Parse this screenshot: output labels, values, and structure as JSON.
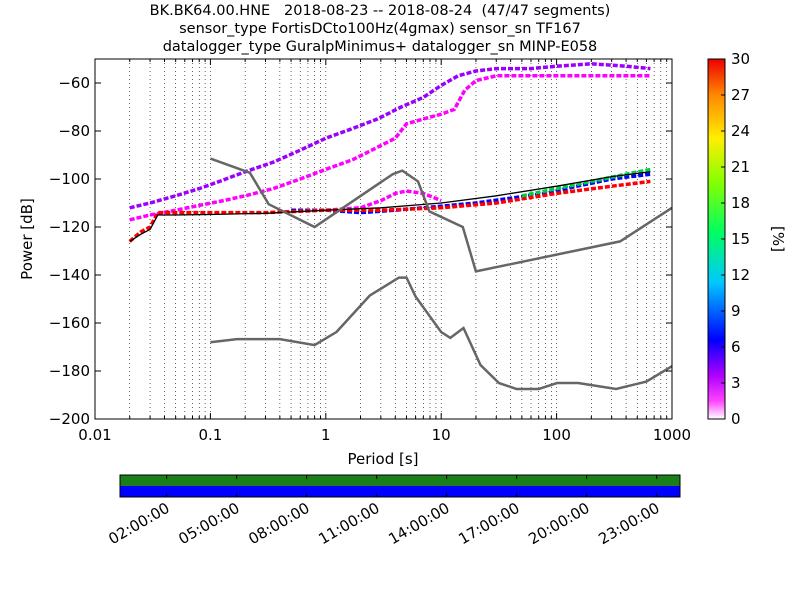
{
  "title_lines": [
    "BK.BK64.00.HNE   2018-08-23 -- 2018-08-24  (47/47 segments)",
    "sensor_type FortisDCto100Hz(4gmax) sensor_sn TF167",
    "datalogger_type GuralpMinimus+ datalogger_sn MINP-E058"
  ],
  "chart_data": {
    "type": "heatmap",
    "xlabel": "Period [s]",
    "ylabel": "Power [dB]",
    "x_scale": "log",
    "xlim": [
      0.01,
      1000
    ],
    "ylim": [
      -200,
      -50
    ],
    "x_ticks": [
      {
        "value": 0.01,
        "label": "0.01"
      },
      {
        "value": 0.1,
        "label": "0.1"
      },
      {
        "value": 1,
        "label": "1"
      },
      {
        "value": 10,
        "label": "10"
      },
      {
        "value": 100,
        "label": "100"
      },
      {
        "value": 1000,
        "label": "1000"
      }
    ],
    "y_ticks": [
      {
        "value": -60,
        "label": "−60"
      },
      {
        "value": -80,
        "label": "−80"
      },
      {
        "value": -100,
        "label": "−100"
      },
      {
        "value": -120,
        "label": "−120"
      },
      {
        "value": -140,
        "label": "−140"
      },
      {
        "value": -160,
        "label": "−160"
      },
      {
        "value": -180,
        "label": "−180"
      },
      {
        "value": -200,
        "label": "−200"
      }
    ],
    "grid": "dotted-vertical",
    "colorbar": {
      "label": "[%]",
      "range": [
        0,
        30
      ],
      "ticks": [
        "0",
        "3",
        "6",
        "9",
        "12",
        "15",
        "18",
        "21",
        "24",
        "27",
        "30"
      ],
      "colormap": "pqlx"
    },
    "nhnm": {
      "x": [
        0.1,
        0.22,
        0.32,
        0.8,
        3.8,
        4.6,
        6.3,
        7.9,
        15.4,
        20,
        354.8,
        1000
      ],
      "y": [
        -91.5,
        -97.4,
        -110.5,
        -120,
        -98,
        -96.5,
        -101,
        -113.5,
        -120,
        -138.5,
        -126,
        -112
      ]
    },
    "nlnm": {
      "x": [
        0.1,
        0.17,
        0.4,
        0.8,
        1.24,
        2.4,
        4.3,
        5,
        6,
        10,
        12,
        15.6,
        21.9,
        31.6,
        45,
        70,
        101,
        154,
        328,
        600,
        1000
      ],
      "y": [
        -168,
        -166.7,
        -166.7,
        -169.2,
        -163.7,
        -148.6,
        -141.1,
        -141.1,
        -149,
        -163.8,
        -166.2,
        -162.1,
        -177.5,
        -185,
        -187.5,
        -187.5,
        -185,
        -185,
        -187.5,
        -184.4,
        -178
      ]
    },
    "series": [
      {
        "name": "",
        "color": "#9b00ff",
        "x": [
          0.02,
          0.03,
          0.05,
          0.08,
          0.12,
          0.2,
          0.35,
          0.6,
          1,
          1.7,
          2.8,
          4.5,
          7,
          10,
          14,
          20,
          30,
          60,
          100,
          200,
          400,
          650
        ],
        "y": [
          -112,
          -110,
          -107,
          -104,
          -101,
          -97,
          -93,
          -88,
          -83,
          -79,
          -75,
          -70,
          -66,
          -61,
          -57,
          -55,
          -54,
          -54,
          -53,
          -52,
          -53,
          -54
        ]
      },
      {
        "name": "",
        "color": "#ff00ff",
        "x": [
          0.02,
          0.03,
          0.05,
          0.08,
          0.13,
          0.2,
          0.35,
          0.6,
          1,
          1.7,
          2.5,
          4,
          5,
          7,
          10,
          13,
          16,
          20,
          30,
          60,
          100,
          200,
          400,
          650
        ],
        "y": [
          -117,
          -115,
          -113,
          -111,
          -109,
          -107,
          -104,
          -100,
          -96,
          -92,
          -88,
          -83,
          -77,
          -75,
          -73,
          -71,
          -63,
          -59,
          -57,
          -57,
          -57,
          -57,
          -57,
          -57
        ]
      },
      {
        "name": "",
        "color": "#ff00ff",
        "x": [
          1,
          2,
          3,
          4,
          5,
          7,
          10
        ],
        "y": [
          -113,
          -112,
          -109,
          -106,
          -105,
          -106,
          -109
        ]
      },
      {
        "name": "",
        "color": "#0000ff",
        "x": [
          0.5,
          1,
          2,
          4,
          7,
          12,
          20,
          40,
          80,
          150,
          300,
          650
        ],
        "y": [
          -113,
          -113,
          -114,
          -113,
          -112,
          -111,
          -110,
          -108,
          -106,
          -103,
          -100,
          -98
        ]
      },
      {
        "name": "",
        "color": "#ff0000",
        "x": [
          0.02,
          0.025,
          0.03,
          0.035,
          0.05,
          0.1,
          0.3,
          1,
          3,
          10,
          30,
          100,
          300,
          650
        ],
        "y": [
          -126,
          -122,
          -120,
          -114,
          -114,
          -114,
          -114,
          -113,
          -113,
          -112,
          -110,
          -106,
          -103,
          -101
        ]
      },
      {
        "name": "",
        "color": "#00cc44",
        "x": [
          50,
          100,
          200,
          400,
          650
        ],
        "y": [
          -107,
          -104,
          -101,
          -98,
          -96
        ]
      },
      {
        "name": "",
        "color": "#000000",
        "x": [
          0.02,
          0.025,
          0.03,
          0.035,
          0.05,
          0.1,
          0.3,
          1,
          3,
          10,
          30,
          100,
          300,
          650
        ],
        "y": [
          -126,
          -123,
          -121,
          -115,
          -115,
          -114.8,
          -114.3,
          -113,
          -112,
          -110,
          -107,
          -103,
          -99,
          -97
        ]
      }
    ]
  },
  "timeline": {
    "tick_labels": [
      "02:00:00",
      "05:00:00",
      "08:00:00",
      "11:00:00",
      "14:00:00",
      "17:00:00",
      "20:00:00",
      "23:00:00"
    ],
    "tick_hours": [
      2,
      5,
      8,
      11,
      14,
      17,
      20,
      23
    ],
    "range_hours": [
      0,
      24
    ],
    "data_color": "#1a7f1a",
    "gap_color": "#0000ff",
    "coverage_fraction": 1.0
  }
}
